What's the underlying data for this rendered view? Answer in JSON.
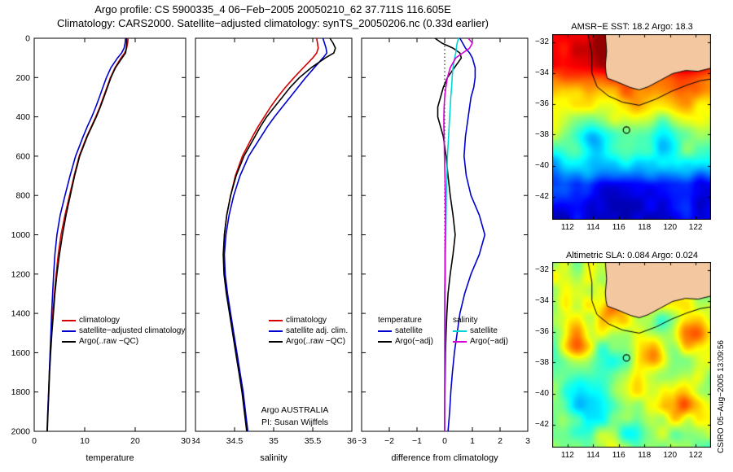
{
  "titles": {
    "line1": "Argo profile: CS 5900335_4 06−Feb−2005 20050210_62 37.711S 116.605E",
    "line2": "Climatology: CARS2000. Satellite−adjusted climatology: synTS_20050206.nc (0.33d earlier)"
  },
  "credit": "CSIRO 05−Aug−2005 13:09:56",
  "annotation": {
    "line1": "Argo AUSTRALIA",
    "line2": "PI: Susan Wijffels"
  },
  "legends": {
    "temperature": [
      {
        "label": "climatology",
        "color": "#d40000"
      },
      {
        "label": "satellite−adjusted climatology",
        "color": "#0000cd"
      },
      {
        "label": "Argo(..raw −QC)",
        "color": "#000000"
      }
    ],
    "salinity": [
      {
        "label": "climatology",
        "color": "#d40000"
      },
      {
        "label": "satellite adj. clim.",
        "color": "#0000cd"
      },
      {
        "label": "Argo(..raw −QC)",
        "color": "#000000"
      }
    ],
    "difference_temperature": {
      "header": "temperature",
      "items": [
        {
          "label": "satellite",
          "color": "#0000cd"
        },
        {
          "label": "Argo(−adj)",
          "color": "#000000"
        }
      ]
    },
    "difference_salinity": {
      "header": "salinity",
      "items": [
        {
          "label": "satellite",
          "color": "#00d5d5"
        },
        {
          "label": "Argo(−adj)",
          "color": "#d400d4"
        }
      ]
    }
  },
  "map_geo": {
    "land_color": "#f3c7a0",
    "land": [
      [
        114.95,
        -31.5
      ],
      [
        115.05,
        -32.6
      ],
      [
        114.95,
        -33.5
      ],
      [
        115.0,
        -34.0
      ],
      [
        115.1,
        -34.35
      ],
      [
        115.6,
        -34.5
      ],
      [
        116.2,
        -34.7
      ],
      [
        116.9,
        -34.95
      ],
      [
        117.6,
        -35.1
      ],
      [
        118.3,
        -34.9
      ],
      [
        119.2,
        -34.5
      ],
      [
        120.2,
        -34.05
      ],
      [
        121.2,
        -33.85
      ],
      [
        122.2,
        -33.9
      ],
      [
        123.2,
        -33.7
      ],
      [
        123.2,
        -31.5
      ]
    ],
    "contour": [
      [
        113.6,
        -31.5
      ],
      [
        113.9,
        -32.8
      ],
      [
        113.9,
        -34.0
      ],
      [
        114.3,
        -34.9
      ],
      [
        115.2,
        -35.5
      ],
      [
        116.3,
        -35.9
      ],
      [
        117.6,
        -36.1
      ],
      [
        118.9,
        -35.7
      ],
      [
        120.1,
        -35.2
      ],
      [
        121.3,
        -34.8
      ],
      [
        122.4,
        -34.5
      ],
      [
        123.2,
        -34.4
      ]
    ]
  },
  "chart_data": [
    {
      "type": "line",
      "panel": "temperature-profile",
      "xlabel": "temperature",
      "xlim": [
        0,
        30
      ],
      "xticks": [
        0,
        10,
        20,
        30
      ],
      "ylim": [
        0,
        2000
      ],
      "yticks": [
        0,
        200,
        400,
        600,
        800,
        1000,
        1200,
        1400,
        1600,
        1800,
        2000
      ],
      "y_axis": "pressure/depth (db), increasing downward",
      "depths": [
        0,
        25,
        50,
        75,
        100,
        150,
        200,
        250,
        300,
        350,
        400,
        450,
        500,
        600,
        700,
        800,
        900,
        1000,
        1100,
        1200,
        1300,
        1400,
        1500,
        1600,
        1700,
        1800,
        1900,
        2000
      ],
      "series": [
        {
          "name": "climatology",
          "color": "#d40000",
          "values": [
            18.6,
            18.5,
            18.3,
            17.9,
            17.2,
            16.0,
            15.1,
            14.4,
            13.7,
            13.0,
            12.2,
            11.3,
            10.4,
            8.9,
            7.9,
            7.0,
            6.1,
            5.3,
            4.75,
            4.35,
            4.0,
            3.7,
            3.45,
            3.2,
            3.0,
            2.85,
            2.7,
            2.55
          ]
        },
        {
          "name": "satellite-adjusted climatology",
          "color": "#0000cd",
          "values": [
            18.1,
            18.0,
            17.8,
            17.3,
            16.5,
            15.2,
            14.3,
            13.6,
            12.9,
            12.2,
            11.4,
            10.5,
            9.7,
            8.2,
            7.1,
            6.1,
            5.15,
            4.5,
            4.1,
            3.85,
            3.65,
            3.45,
            3.3,
            3.15,
            3.0,
            2.85,
            2.7,
            2.55
          ]
        },
        {
          "name": "Argo(..raw -QC)",
          "color": "#000000",
          "values": [
            18.3,
            18.3,
            18.25,
            18.1,
            17.4,
            16.1,
            15.2,
            14.5,
            13.8,
            13.1,
            12.3,
            11.4,
            10.5,
            9.0,
            8.0,
            7.15,
            6.3,
            5.6,
            5.0,
            4.5,
            4.1,
            3.8,
            3.5,
            3.25,
            3.05,
            2.9,
            2.75,
            2.6
          ]
        }
      ]
    },
    {
      "type": "line",
      "panel": "salinity-profile",
      "xlabel": "salinity",
      "xlim": [
        34,
        36
      ],
      "xticks": [
        34,
        34.5,
        35,
        35.5,
        36
      ],
      "ylim": [
        0,
        2000
      ],
      "yticks": [
        0,
        200,
        400,
        600,
        800,
        1000,
        1200,
        1400,
        1600,
        1800,
        2000
      ],
      "depths": [
        0,
        25,
        50,
        75,
        100,
        150,
        200,
        250,
        300,
        350,
        400,
        450,
        500,
        600,
        700,
        800,
        900,
        1000,
        1100,
        1200,
        1300,
        1400,
        1500,
        1600,
        1700,
        1800,
        1900,
        2000
      ],
      "series": [
        {
          "name": "climatology",
          "color": "#d40000",
          "values": [
            35.55,
            35.56,
            35.57,
            35.55,
            35.5,
            35.38,
            35.26,
            35.15,
            35.05,
            34.96,
            34.88,
            34.8,
            34.73,
            34.6,
            34.51,
            34.45,
            34.4,
            34.37,
            34.36,
            34.37,
            34.4,
            34.44,
            34.48,
            34.52,
            34.56,
            34.6,
            34.63,
            34.66
          ]
        },
        {
          "name": "satellite adj. clim.",
          "color": "#0000cd",
          "values": [
            35.63,
            35.65,
            35.67,
            35.68,
            35.63,
            35.52,
            35.41,
            35.31,
            35.21,
            35.11,
            35.01,
            34.92,
            34.84,
            34.68,
            34.57,
            34.49,
            34.43,
            34.39,
            34.37,
            34.38,
            34.41,
            34.45,
            34.49,
            34.53,
            34.57,
            34.61,
            34.64,
            34.67
          ]
        },
        {
          "name": "Argo(..raw -QC)",
          "color": "#000000",
          "values": [
            35.72,
            35.76,
            35.79,
            35.77,
            35.66,
            35.48,
            35.33,
            35.21,
            35.11,
            35.01,
            34.91,
            34.83,
            34.76,
            34.62,
            34.52,
            34.45,
            34.4,
            34.37,
            34.355,
            34.365,
            34.395,
            34.435,
            34.475,
            34.515,
            34.555,
            34.595,
            34.625,
            34.655
          ]
        }
      ]
    },
    {
      "type": "line",
      "panel": "difference-profile",
      "xlabel": "difference from climatology",
      "xlim": [
        -3,
        3
      ],
      "xticks": [
        -3,
        -2,
        -1,
        0,
        1,
        2,
        3
      ],
      "zero_line": true,
      "ylim": [
        0,
        2000
      ],
      "yticks": [
        0,
        200,
        400,
        600,
        800,
        1000,
        1200,
        1400,
        1600,
        1800,
        2000
      ],
      "depths": [
        0,
        25,
        50,
        75,
        100,
        150,
        200,
        250,
        300,
        350,
        400,
        450,
        500,
        600,
        700,
        800,
        900,
        1000,
        1100,
        1200,
        1300,
        1400,
        1500,
        1600,
        1700,
        1800,
        1900,
        2000
      ],
      "series": [
        {
          "name": "temperature satellite",
          "color": "#0000cd",
          "values": [
            0.55,
            0.65,
            0.75,
            0.9,
            1.0,
            1.1,
            1.1,
            1.05,
            0.95,
            0.9,
            0.85,
            0.8,
            0.75,
            0.7,
            0.78,
            0.95,
            1.25,
            1.45,
            1.25,
            0.95,
            0.72,
            0.55,
            0.45,
            0.35,
            0.28,
            0.22,
            0.18,
            0.12
          ]
        },
        {
          "name": "temperature Argo(-adj)",
          "color": "#000000",
          "values": [
            -0.35,
            -0.1,
            0.3,
            0.55,
            0.6,
            0.35,
            0.1,
            -0.05,
            -0.15,
            -0.25,
            -0.25,
            -0.15,
            -0.05,
            0.05,
            0.12,
            0.2,
            0.3,
            0.38,
            0.3,
            0.2,
            0.12,
            0.08,
            0.05,
            0.03,
            0.02,
            0.01,
            0.0,
            0.0
          ]
        },
        {
          "name": "salinity satellite",
          "color": "#00d5d5",
          "values": [
            0.5,
            0.45,
            0.42,
            0.4,
            0.36,
            0.3,
            0.27,
            0.25,
            0.22,
            0.2,
            0.18,
            0.16,
            0.14,
            0.1,
            0.08,
            0.06,
            0.05,
            0.04,
            0.03,
            0.03,
            0.02,
            0.02,
            0.01,
            0.01,
            0.01,
            0.0,
            0.0,
            0.0
          ]
        },
        {
          "name": "salinity Argo(-adj)",
          "color": "#d400d4",
          "values": [
            0.85,
            1.0,
            0.9,
            0.65,
            0.4,
            0.2,
            0.1,
            0.04,
            0.0,
            -0.02,
            -0.03,
            -0.03,
            -0.02,
            -0.01,
            0.01,
            0.02,
            0.03,
            0.02,
            0.01,
            0.01,
            0.0,
            0.0,
            0.0,
            0.0,
            0.0,
            0.0,
            0.0,
            0.0
          ]
        }
      ]
    },
    {
      "type": "heatmap",
      "panel": "sst-map",
      "title": "AMSR−E SST: 18.2 Argo: 18.3",
      "colormap": "jet",
      "lon_range": [
        110.8,
        123.2
      ],
      "lat_range": [
        -43.5,
        -31.5
      ],
      "xticks": [
        112,
        114,
        116,
        118,
        120,
        122
      ],
      "yticks": [
        -32,
        -34,
        -36,
        -38,
        -40,
        -42
      ],
      "marker": {
        "lon": 116.6,
        "lat": -37.7
      },
      "lat_value_stops": [
        [
          -31.5,
          0.95
        ],
        [
          -33.5,
          0.9
        ],
        [
          -34.5,
          0.78
        ],
        [
          -35.8,
          0.66
        ],
        [
          -37.0,
          0.58
        ],
        [
          -38.2,
          0.5
        ],
        [
          -39.2,
          0.42
        ],
        [
          -40.2,
          0.3
        ],
        [
          -41.2,
          0.15
        ],
        [
          -43.5,
          0.08
        ]
      ],
      "noise_amp": 0.09,
      "seed": 7,
      "features": [
        {
          "lon": 114.0,
          "lat": -38.6,
          "amp": -0.18,
          "r": 1.1
        },
        {
          "lon": 119.5,
          "lat": -38.3,
          "amp": -0.15,
          "r": 1.3
        },
        {
          "lon": 117.0,
          "lat": -36.3,
          "amp": 0.08,
          "r": 1.5
        }
      ]
    },
    {
      "type": "heatmap",
      "panel": "sla-map",
      "title": "Altimetric SLA: 0.084 Argo: 0.024",
      "colormap": "jet",
      "lon_range": [
        110.8,
        123.2
      ],
      "lat_range": [
        -43.5,
        -31.5
      ],
      "xticks": [
        112,
        114,
        116,
        118,
        120,
        122
      ],
      "yticks": [
        -32,
        -34,
        -36,
        -38,
        -40,
        -42
      ],
      "marker": {
        "lon": 116.6,
        "lat": -37.7
      },
      "base_value": 0.55,
      "noise_amp": 0.15,
      "seed": 42,
      "features": [
        {
          "lon": 118.7,
          "lat": -37.3,
          "amp": 0.33,
          "r": 1.1
        },
        {
          "lon": 121.4,
          "lat": -36.2,
          "amp": 0.22,
          "r": 1.2
        },
        {
          "lon": 112.6,
          "lat": -36.3,
          "amp": 0.2,
          "r": 1.3
        },
        {
          "lon": 115.5,
          "lat": -34.8,
          "amp": 0.18,
          "r": 1.0
        },
        {
          "lon": 120.8,
          "lat": -40.9,
          "amp": 0.25,
          "r": 1.2
        },
        {
          "lon": 116.8,
          "lat": -42.8,
          "amp": -0.2,
          "r": 1.2
        },
        {
          "lon": 113.5,
          "lat": -40.5,
          "amp": -0.12,
          "r": 1.5
        }
      ]
    }
  ]
}
